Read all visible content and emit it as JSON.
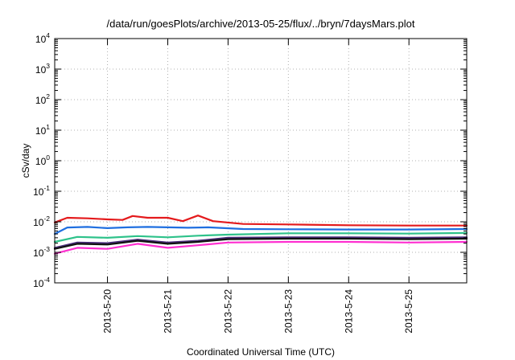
{
  "chart_data": {
    "type": "line",
    "title": "/data/run/goesPlots/archive/2013-05-25/flux/../bryn/7daysMars.plot",
    "xlabel": "Coordinated Universal Time (UTC)",
    "ylabel": "cSv/day",
    "y_scale": "log",
    "ylim": [
      0.0001,
      10000
    ],
    "y_ticks": [
      {
        "base": "10",
        "exp": "4"
      },
      {
        "base": "10",
        "exp": "3"
      },
      {
        "base": "10",
        "exp": "2"
      },
      {
        "base": "10",
        "exp": "1"
      },
      {
        "base": "10",
        "exp": "0"
      },
      {
        "base": "10",
        "exp": "-1"
      },
      {
        "base": "10",
        "exp": "-2"
      },
      {
        "base": "10",
        "exp": "-3"
      },
      {
        "base": "10",
        "exp": "-4"
      }
    ],
    "x_start": "2013-05-19",
    "x_end": "2013-05-26",
    "xlim": [
      "2013-05-19 03:00",
      "2013-05-25 23:00"
    ],
    "x_ticks": [
      "2013-5-20",
      "2013-5-21",
      "2013-5-22",
      "2013-5-23",
      "2013-5-24",
      "2013-5-25"
    ],
    "grid": true,
    "series": [
      {
        "color": "#e41a1c",
        "x": [
          "2013-05-19 03:00",
          "2013-05-19 08:00",
          "2013-05-19 16:00",
          "2013-05-20 00:00",
          "2013-05-20 06:00",
          "2013-05-20 10:00",
          "2013-05-20 16:00",
          "2013-05-21 00:00",
          "2013-05-21 06:00",
          "2013-05-21 12:00",
          "2013-05-21 18:00",
          "2013-05-22 06:00",
          "2013-05-23 00:00",
          "2013-05-24 00:00",
          "2013-05-25 00:00",
          "2013-05-25 23:00"
        ],
        "values": [
          0.0095,
          0.0135,
          0.013,
          0.012,
          0.0115,
          0.0155,
          0.0135,
          0.0135,
          0.0105,
          0.016,
          0.0105,
          0.0085,
          0.0082,
          0.0077,
          0.0075,
          0.0075
        ]
      },
      {
        "color": "#1f6fe0",
        "x": [
          "2013-05-19 03:00",
          "2013-05-19 08:00",
          "2013-05-19 16:00",
          "2013-05-20 00:00",
          "2013-05-20 08:00",
          "2013-05-20 16:00",
          "2013-05-21 00:00",
          "2013-05-21 08:00",
          "2013-05-21 16:00",
          "2013-05-22 06:00",
          "2013-05-23 00:00",
          "2013-05-24 00:00",
          "2013-05-25 00:00",
          "2013-05-25 23:00"
        ],
        "values": [
          0.004,
          0.0065,
          0.0068,
          0.0062,
          0.0066,
          0.0068,
          0.0066,
          0.0064,
          0.0066,
          0.0058,
          0.0057,
          0.0056,
          0.0056,
          0.0058
        ]
      },
      {
        "color": "#2ec28a",
        "x": [
          "2013-05-19 03:00",
          "2013-05-19 12:00",
          "2013-05-20 00:00",
          "2013-05-20 12:00",
          "2013-05-21 00:00",
          "2013-05-21 12:00",
          "2013-05-22 00:00",
          "2013-05-23 00:00",
          "2013-05-24 00:00",
          "2013-05-25 00:00",
          "2013-05-25 23:00"
        ],
        "values": [
          0.0022,
          0.0032,
          0.003,
          0.0034,
          0.0031,
          0.0035,
          0.0038,
          0.0042,
          0.0042,
          0.0041,
          0.0043
        ]
      },
      {
        "color": "#4a2e7a",
        "x": [
          "2013-05-19 03:00",
          "2013-05-19 12:00",
          "2013-05-20 00:00",
          "2013-05-20 12:00",
          "2013-05-21 00:00",
          "2013-05-21 12:00",
          "2013-05-22 00:00",
          "2013-05-23 00:00",
          "2013-05-24 00:00",
          "2013-05-25 00:00",
          "2013-05-25 23:00"
        ],
        "values": [
          0.0014,
          0.0021,
          0.002,
          0.0026,
          0.0021,
          0.0024,
          0.003,
          0.0031,
          0.0031,
          0.003,
          0.0031
        ]
      },
      {
        "color": "#111111",
        "x": [
          "2013-05-19 03:00",
          "2013-05-19 12:00",
          "2013-05-20 00:00",
          "2013-05-20 12:00",
          "2013-05-21 00:00",
          "2013-05-21 12:00",
          "2013-05-22 00:00",
          "2013-05-23 00:00",
          "2013-05-24 00:00",
          "2013-05-25 00:00",
          "2013-05-25 23:00"
        ],
        "values": [
          0.0013,
          0.0019,
          0.0018,
          0.0024,
          0.0019,
          0.0022,
          0.0027,
          0.0028,
          0.0028,
          0.0027,
          0.0028
        ]
      },
      {
        "color": "#ff2fd0",
        "x": [
          "2013-05-19 03:00",
          "2013-05-19 12:00",
          "2013-05-20 00:00",
          "2013-05-20 12:00",
          "2013-05-21 00:00",
          "2013-05-21 12:00",
          "2013-05-22 00:00",
          "2013-05-23 00:00",
          "2013-05-24 00:00",
          "2013-05-25 00:00",
          "2013-05-25 23:00"
        ],
        "values": [
          0.0009,
          0.0014,
          0.0013,
          0.0019,
          0.0014,
          0.0017,
          0.0021,
          0.0022,
          0.0022,
          0.0021,
          0.0022
        ]
      }
    ]
  }
}
